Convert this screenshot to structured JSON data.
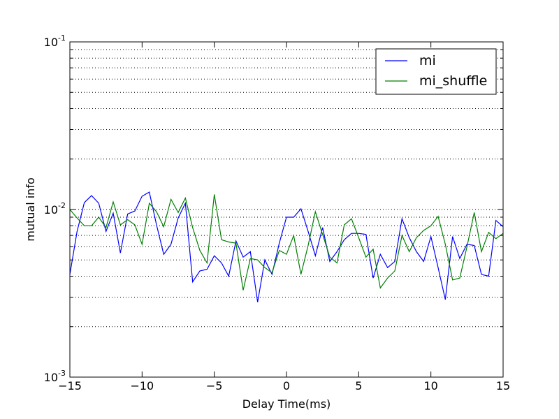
{
  "chart_data": {
    "type": "line",
    "title": "",
    "xlabel": "Delay Time(ms)",
    "ylabel": "mutual info",
    "xlim": [
      -15,
      15
    ],
    "ylim": [
      0.001,
      0.1
    ],
    "yscale": "log",
    "grid": "y-major-minor-dotted",
    "legend_position": "top-right",
    "x_ticks": [
      {
        "value": -15,
        "label": "−15"
      },
      {
        "value": -10,
        "label": "−10"
      },
      {
        "value": -5,
        "label": "−5"
      },
      {
        "value": 0,
        "label": "0"
      },
      {
        "value": 5,
        "label": "5"
      },
      {
        "value": 10,
        "label": "10"
      },
      {
        "value": 15,
        "label": "15"
      }
    ],
    "y_ticks": [
      {
        "value": 0.001,
        "base": "10",
        "exp": "-3"
      },
      {
        "value": 0.01,
        "base": "10",
        "exp": "-2"
      },
      {
        "value": 0.1,
        "base": "10",
        "exp": "-1"
      }
    ],
    "x": [
      -15.0,
      -14.5,
      -14.0,
      -13.5,
      -13.0,
      -12.5,
      -12.0,
      -11.5,
      -11.0,
      -10.5,
      -10.0,
      -9.5,
      -9.0,
      -8.5,
      -8.0,
      -7.5,
      -7.0,
      -6.5,
      -6.0,
      -5.5,
      -5.0,
      -4.5,
      -4.0,
      -3.5,
      -3.0,
      -2.5,
      -2.0,
      -1.5,
      -1.0,
      -0.5,
      0.0,
      0.5,
      1.0,
      1.5,
      2.0,
      2.5,
      3.0,
      3.5,
      4.0,
      4.5,
      5.0,
      5.5,
      6.0,
      6.5,
      7.0,
      7.5,
      8.0,
      8.5,
      9.0,
      9.5,
      10.0,
      10.5,
      11.0,
      11.5,
      12.0,
      12.5,
      13.0,
      13.5,
      14.0,
      14.5,
      15.0
    ],
    "series": [
      {
        "name": "mi",
        "color": "#0000ff",
        "values": [
          0.0041,
          0.0074,
          0.011,
          0.0121,
          0.0109,
          0.0074,
          0.0095,
          0.0055,
          0.0094,
          0.0098,
          0.012,
          0.0127,
          0.0081,
          0.0054,
          0.0062,
          0.0089,
          0.0109,
          0.0037,
          0.0043,
          0.0044,
          0.0053,
          0.0048,
          0.004,
          0.0065,
          0.0052,
          0.0056,
          0.0028,
          0.005,
          0.0041,
          0.0063,
          0.009,
          0.009,
          0.0101,
          0.0074,
          0.0053,
          0.0078,
          0.0049,
          0.0056,
          0.0066,
          0.0072,
          0.0072,
          0.0071,
          0.0039,
          0.0054,
          0.0045,
          0.0049,
          0.0088,
          0.0068,
          0.0056,
          0.0049,
          0.0069,
          0.0045,
          0.0029,
          0.0069,
          0.0051,
          0.0062,
          0.0061,
          0.0041,
          0.004,
          0.0086,
          0.0079
        ]
      },
      {
        "name": "mi_shuffle",
        "color": "#008000",
        "values": [
          0.01,
          0.0089,
          0.008,
          0.008,
          0.009,
          0.0078,
          0.0111,
          0.0081,
          0.0087,
          0.0081,
          0.0062,
          0.0109,
          0.0097,
          0.0079,
          0.0115,
          0.0096,
          0.0117,
          0.0078,
          0.0057,
          0.0048,
          0.0123,
          0.0066,
          0.0064,
          0.0063,
          0.0033,
          0.0051,
          0.005,
          0.0045,
          0.0042,
          0.0057,
          0.0054,
          0.007,
          0.0041,
          0.0061,
          0.0097,
          0.0071,
          0.0052,
          0.0048,
          0.0081,
          0.0088,
          0.0068,
          0.0052,
          0.0058,
          0.0034,
          0.0039,
          0.0043,
          0.007,
          0.0056,
          0.0068,
          0.0075,
          0.008,
          0.0091,
          0.0062,
          0.0038,
          0.0039,
          0.006,
          0.0096,
          0.0056,
          0.0073,
          0.0067,
          0.0072
        ]
      }
    ]
  }
}
